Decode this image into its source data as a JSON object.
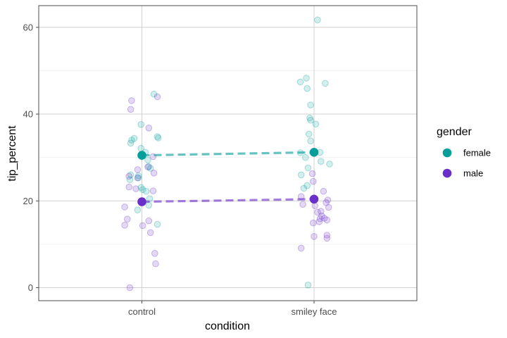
{
  "chart_data": {
    "type": "scatter",
    "title": "",
    "xlabel": "condition",
    "ylabel": "tip_percent",
    "categories": [
      "control",
      "smiley face"
    ],
    "ylim": [
      -3,
      65
    ],
    "yticks": [
      0,
      20,
      40,
      60
    ],
    "grid": true,
    "legend": {
      "title": "gender",
      "placement": "right"
    },
    "series": [
      {
        "name": "female",
        "color": "#069e9a",
        "means": [
          30.5,
          31.2
        ],
        "points": [
          {
            "category": "control",
            "offset": -0.065,
            "y": 33.3
          },
          {
            "category": "control",
            "offset": -0.06,
            "y": 34.0
          },
          {
            "category": "control",
            "offset": -0.045,
            "y": 34.4
          },
          {
            "category": "control",
            "offset": -0.005,
            "y": 37.6
          },
          {
            "category": "control",
            "offset": 0.07,
            "y": 44.6
          },
          {
            "category": "control",
            "offset": 0.09,
            "y": 34.8
          },
          {
            "category": "control",
            "offset": 0.095,
            "y": 34.5
          },
          {
            "category": "control",
            "offset": -0.005,
            "y": 32.1
          },
          {
            "category": "control",
            "offset": 0.02,
            "y": 31.2
          },
          {
            "category": "control",
            "offset": 0.035,
            "y": 29.4
          },
          {
            "category": "control",
            "offset": 0.04,
            "y": 27.9
          },
          {
            "category": "control",
            "offset": 0.05,
            "y": 27.5
          },
          {
            "category": "control",
            "offset": -0.02,
            "y": 25.8
          },
          {
            "category": "control",
            "offset": -0.065,
            "y": 26.0
          },
          {
            "category": "control",
            "offset": -0.07,
            "y": 24.9
          },
          {
            "category": "control",
            "offset": -0.02,
            "y": 25.3
          },
          {
            "category": "control",
            "offset": -0.005,
            "y": 23.1
          },
          {
            "category": "control",
            "offset": 0.005,
            "y": 22.6
          },
          {
            "category": "control",
            "offset": 0.025,
            "y": 22.2
          },
          {
            "category": "control",
            "offset": 0.045,
            "y": 20.5
          },
          {
            "category": "control",
            "offset": 0.04,
            "y": 19.0
          },
          {
            "category": "control",
            "offset": -0.025,
            "y": 17.9
          },
          {
            "category": "control",
            "offset": 0.09,
            "y": 14.6
          },
          {
            "category": "smiley face",
            "offset": 0.02,
            "y": 61.7
          },
          {
            "category": "smiley face",
            "offset": -0.045,
            "y": 48.3
          },
          {
            "category": "smiley face",
            "offset": -0.08,
            "y": 47.4
          },
          {
            "category": "smiley face",
            "offset": 0.065,
            "y": 47.1
          },
          {
            "category": "smiley face",
            "offset": -0.04,
            "y": 45.9
          },
          {
            "category": "smiley face",
            "offset": -0.02,
            "y": 42.1
          },
          {
            "category": "smiley face",
            "offset": -0.025,
            "y": 39.1
          },
          {
            "category": "smiley face",
            "offset": -0.02,
            "y": 38.6
          },
          {
            "category": "smiley face",
            "offset": 0.01,
            "y": 37.7
          },
          {
            "category": "smiley face",
            "offset": -0.03,
            "y": 35.4
          },
          {
            "category": "smiley face",
            "offset": -0.02,
            "y": 33.8
          },
          {
            "category": "smiley face",
            "offset": -0.08,
            "y": 31.1
          },
          {
            "category": "smiley face",
            "offset": 0.035,
            "y": 31.2
          },
          {
            "category": "smiley face",
            "offset": -0.05,
            "y": 30.0
          },
          {
            "category": "smiley face",
            "offset": 0.04,
            "y": 29.1
          },
          {
            "category": "smiley face",
            "offset": 0.09,
            "y": 28.5
          },
          {
            "category": "smiley face",
            "offset": -0.035,
            "y": 27.6
          },
          {
            "category": "smiley face",
            "offset": -0.075,
            "y": 26.0
          },
          {
            "category": "smiley face",
            "offset": -0.06,
            "y": 22.9
          },
          {
            "category": "smiley face",
            "offset": -0.04,
            "y": 23.5
          },
          {
            "category": "smiley face",
            "offset": -0.035,
            "y": 0.6
          }
        ]
      },
      {
        "name": "male",
        "color": "#6b2fc9",
        "means": [
          19.8,
          20.4
        ],
        "points": [
          {
            "category": "control",
            "offset": -0.06,
            "y": 43.1
          },
          {
            "category": "control",
            "offset": -0.065,
            "y": 41.1
          },
          {
            "category": "control",
            "offset": 0.09,
            "y": 44.0
          },
          {
            "category": "control",
            "offset": 0.04,
            "y": 36.8
          },
          {
            "category": "control",
            "offset": 0.065,
            "y": 30.2
          },
          {
            "category": "control",
            "offset": 0.035,
            "y": 27.8
          },
          {
            "category": "control",
            "offset": -0.025,
            "y": 27.2
          },
          {
            "category": "control",
            "offset": 0.07,
            "y": 26.4
          },
          {
            "category": "control",
            "offset": -0.075,
            "y": 25.7
          },
          {
            "category": "control",
            "offset": -0.025,
            "y": 25.3
          },
          {
            "category": "control",
            "offset": -0.075,
            "y": 23.2
          },
          {
            "category": "control",
            "offset": -0.035,
            "y": 22.8
          },
          {
            "category": "control",
            "offset": 0.065,
            "y": 22.3
          },
          {
            "category": "control",
            "offset": -0.1,
            "y": 18.6
          },
          {
            "category": "control",
            "offset": -0.085,
            "y": 15.8
          },
          {
            "category": "control",
            "offset": -0.1,
            "y": 14.4
          },
          {
            "category": "control",
            "offset": 0.005,
            "y": 14.3
          },
          {
            "category": "control",
            "offset": 0.04,
            "y": 15.4
          },
          {
            "category": "control",
            "offset": 0.05,
            "y": 12.7
          },
          {
            "category": "control",
            "offset": 0.075,
            "y": 7.9
          },
          {
            "category": "control",
            "offset": 0.08,
            "y": 5.5
          },
          {
            "category": "control",
            "offset": -0.07,
            "y": 0.0
          },
          {
            "category": "smiley face",
            "offset": -0.01,
            "y": 26.3
          },
          {
            "category": "smiley face",
            "offset": -0.005,
            "y": 24.5
          },
          {
            "category": "smiley face",
            "offset": 0.055,
            "y": 22.2
          },
          {
            "category": "smiley face",
            "offset": -0.075,
            "y": 21.0
          },
          {
            "category": "smiley face",
            "offset": -0.065,
            "y": 19.2
          },
          {
            "category": "smiley face",
            "offset": 0.005,
            "y": 18.9
          },
          {
            "category": "smiley face",
            "offset": 0.07,
            "y": 19.6
          },
          {
            "category": "smiley face",
            "offset": 0.08,
            "y": 20.2
          },
          {
            "category": "smiley face",
            "offset": 0.085,
            "y": 18.5
          },
          {
            "category": "smiley face",
            "offset": 0.02,
            "y": 17.4
          },
          {
            "category": "smiley face",
            "offset": 0.04,
            "y": 17.6
          },
          {
            "category": "smiley face",
            "offset": 0.045,
            "y": 16.5
          },
          {
            "category": "smiley face",
            "offset": 0.035,
            "y": 15.9
          },
          {
            "category": "smiley face",
            "offset": 0.06,
            "y": 16.0
          },
          {
            "category": "smiley face",
            "offset": 0.075,
            "y": 15.6
          },
          {
            "category": "smiley face",
            "offset": 0.03,
            "y": 15.2
          },
          {
            "category": "smiley face",
            "offset": -0.005,
            "y": 14.9
          },
          {
            "category": "smiley face",
            "offset": 0.0,
            "y": 11.8
          },
          {
            "category": "smiley face",
            "offset": 0.075,
            "y": 12.1
          },
          {
            "category": "smiley face",
            "offset": 0.075,
            "y": 11.4
          },
          {
            "category": "smiley face",
            "offset": -0.075,
            "y": 9.1
          }
        ]
      }
    ]
  }
}
